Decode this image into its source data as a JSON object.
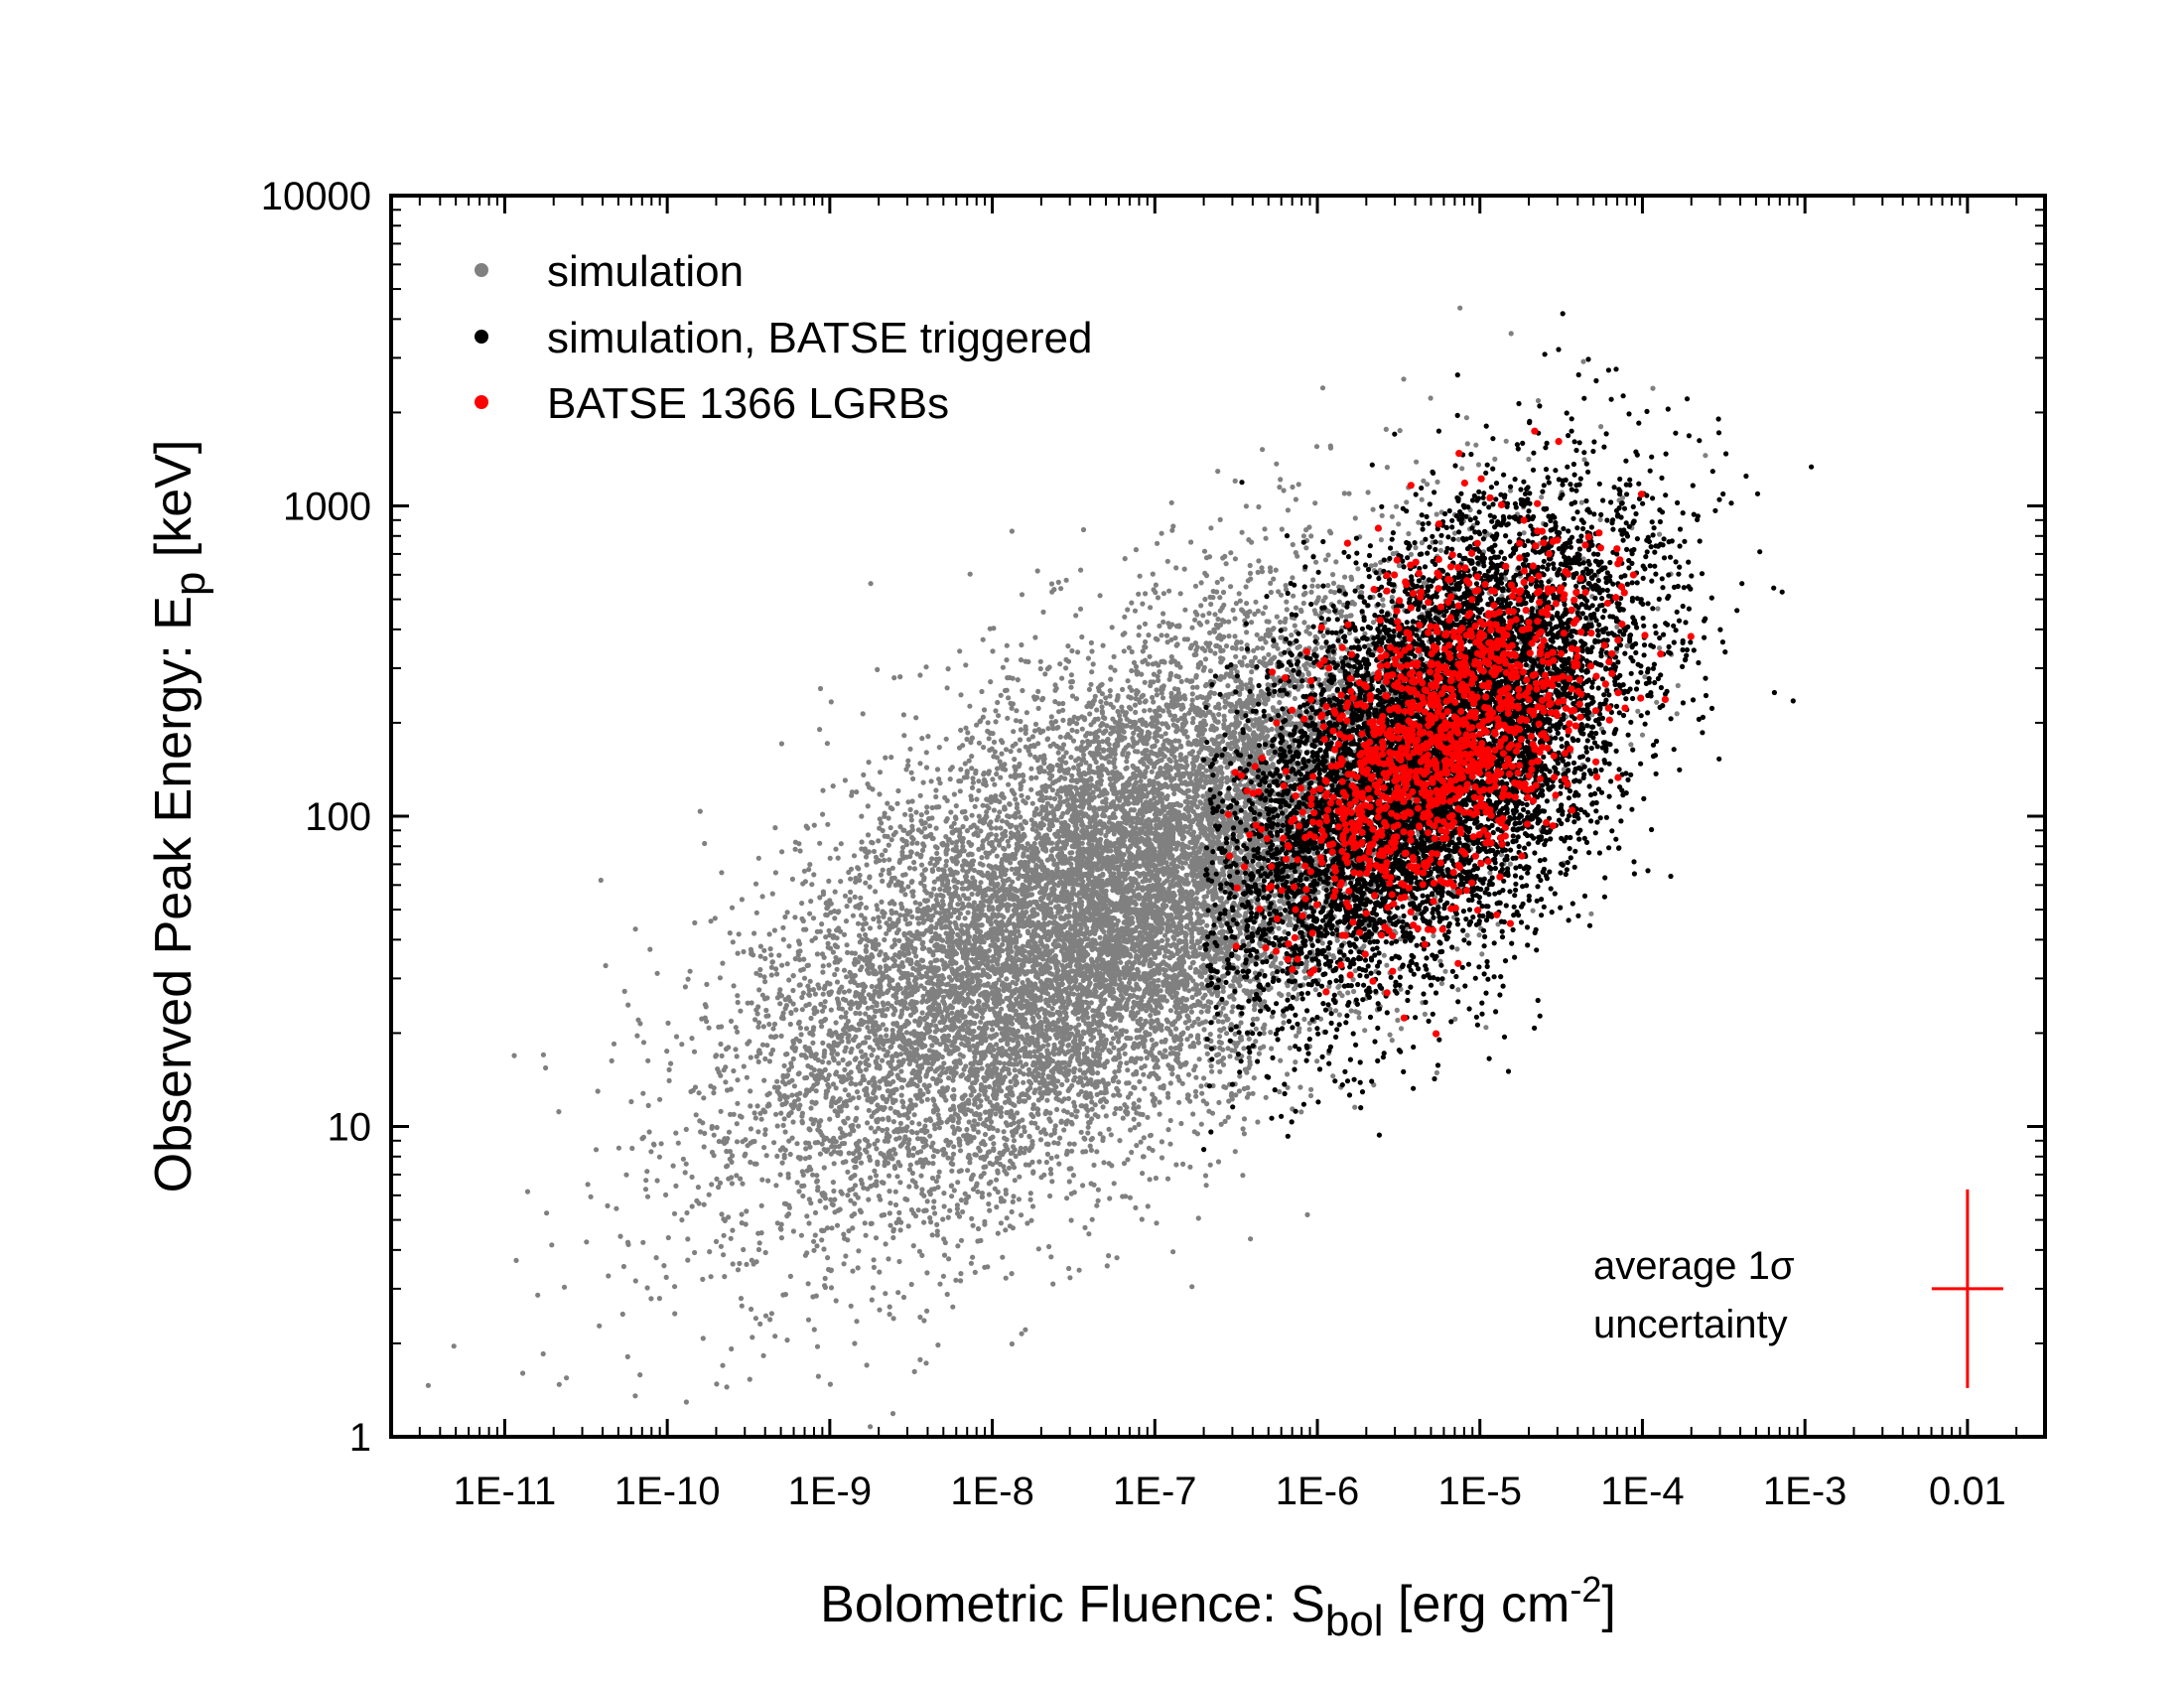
{
  "chart_data": {
    "type": "scatter",
    "xlabel": {
      "main": "Bolometric Fluence: S",
      "sub": "bol",
      "unit_open": " [erg cm",
      "sup": "-2",
      "unit_close": "]"
    },
    "ylabel": {
      "main": "Observed Peak Energy: E",
      "sub": "p",
      "unit": " [keV]"
    },
    "x_scale": "log",
    "y_scale": "log",
    "xlim": [
      2e-12,
      0.03
    ],
    "ylim": [
      1,
      10000
    ],
    "x_ticks": [
      {
        "value": 1e-11,
        "label": "1E-11"
      },
      {
        "value": 1e-10,
        "label": "1E-10"
      },
      {
        "value": 1e-09,
        "label": "1E-9"
      },
      {
        "value": 1e-08,
        "label": "1E-8"
      },
      {
        "value": 1e-07,
        "label": "1E-7"
      },
      {
        "value": 1e-06,
        "label": "1E-6"
      },
      {
        "value": 1e-05,
        "label": "1E-5"
      },
      {
        "value": 0.0001,
        "label": "1E-4"
      },
      {
        "value": 0.001,
        "label": "1E-3"
      },
      {
        "value": 0.01,
        "label": "0.01"
      }
    ],
    "y_ticks": [
      {
        "value": 1,
        "label": "1"
      },
      {
        "value": 10,
        "label": "10"
      },
      {
        "value": 100,
        "label": "100"
      },
      {
        "value": 1000,
        "label": "1000"
      },
      {
        "value": 10000,
        "label": "10000"
      }
    ],
    "legend_position": "top-left",
    "series": [
      {
        "name": "simulation",
        "color": "#808080",
        "distribution": {
          "n": 14000,
          "log_x_mean": -7.3,
          "log_x_sd": 1.05,
          "log_y_mean": 1.72,
          "log_y_sd": 0.48,
          "corr": 0.62,
          "seed": 11
        }
      },
      {
        "name": "simulation, BATSE triggered",
        "color": "#000000",
        "distribution": {
          "n": 9000,
          "log_x_mean": -5.3,
          "log_x_sd": 0.62,
          "log_y_mean": 2.2,
          "log_y_sd": 0.38,
          "corr": 0.55,
          "log_x_min": -6.7,
          "seed": 23
        }
      },
      {
        "name": "BATSE 1366 LGRBs",
        "color": "#ff0000",
        "distribution": {
          "n": 1366,
          "log_x_mean": -5.25,
          "log_x_sd": 0.48,
          "log_y_mean": 2.25,
          "log_y_sd": 0.3,
          "corr": 0.5,
          "log_x_min": -6.6,
          "seed": 37
        }
      }
    ],
    "annotation": {
      "line1": "average 1σ",
      "line2": "uncertainty",
      "color": "#ff0000",
      "center": {
        "x": 0.01,
        "y": 3
      },
      "x_half_width_dex": 0.22,
      "y_half_width_dex": 0.32
    }
  }
}
